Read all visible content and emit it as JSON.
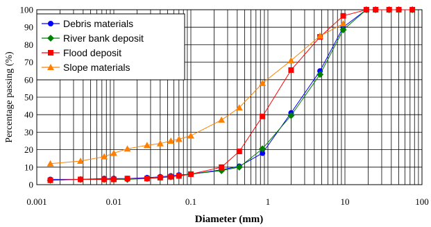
{
  "chart_data": {
    "type": "line",
    "xscale": "log",
    "xlim": [
      0.001,
      100
    ],
    "ylim": [
      0,
      100
    ],
    "xlabel": "Diameter (mm)",
    "ylabel": "Percentage passing (%)",
    "xticks": [
      "0.001",
      "0.01",
      "0.1",
      "1",
      "10",
      "100"
    ],
    "yticks": [
      "0",
      "10",
      "20",
      "30",
      "40",
      "50",
      "60",
      "70",
      "80",
      "90",
      "100"
    ],
    "grid": true,
    "legend_position": "top-left",
    "series": [
      {
        "name": "Debris materials",
        "color": "#0000ff",
        "marker": "circle",
        "x": [
          0.0015,
          0.0037,
          0.0075,
          0.01,
          0.015,
          0.027,
          0.04,
          0.055,
          0.07,
          0.1,
          0.25,
          0.425,
          0.85,
          2,
          4.75,
          9.5,
          19,
          25,
          37.5,
          50,
          75
        ],
        "y": [
          3,
          3,
          3.5,
          3.5,
          3.5,
          4,
          4.5,
          5,
          5.5,
          6,
          8.5,
          10.5,
          18,
          41,
          65,
          90,
          100,
          100,
          100,
          100,
          100
        ]
      },
      {
        "name": "River bank deposit",
        "color": "#008000",
        "marker": "diamond",
        "x": [
          0.0015,
          0.0037,
          0.0075,
          0.01,
          0.015,
          0.027,
          0.04,
          0.055,
          0.07,
          0.1,
          0.25,
          0.425,
          0.85,
          2,
          4.75,
          9.5,
          19,
          25,
          37.5,
          50,
          75
        ],
        "y": [
          2.5,
          3,
          3,
          3,
          3,
          3.5,
          4,
          4.5,
          5,
          6,
          8,
          10,
          20.5,
          39.5,
          63,
          88.5,
          100,
          100,
          100,
          100,
          100
        ]
      },
      {
        "name": "Flood deposit",
        "color": "#ff0000",
        "marker": "square",
        "x": [
          0.0015,
          0.0037,
          0.0075,
          0.01,
          0.015,
          0.027,
          0.04,
          0.055,
          0.07,
          0.1,
          0.25,
          0.425,
          0.85,
          2,
          4.75,
          9.5,
          19,
          25,
          37.5,
          50,
          75
        ],
        "y": [
          2.5,
          3,
          3,
          3,
          3.5,
          3.5,
          4,
          4.5,
          5,
          6,
          10,
          19,
          39,
          65.5,
          84.5,
          96.5,
          100,
          100,
          100,
          100,
          100
        ]
      },
      {
        "name": "Slope materials",
        "color": "#ff8000",
        "marker": "triangle",
        "x": [
          0.0015,
          0.0037,
          0.0075,
          0.01,
          0.015,
          0.027,
          0.04,
          0.055,
          0.07,
          0.1,
          0.25,
          0.425,
          0.85,
          2,
          4.75,
          9.5
        ],
        "y": [
          12,
          13.5,
          16,
          18,
          20.5,
          22.5,
          23.5,
          25,
          26,
          28,
          37,
          44,
          58,
          71,
          85,
          92
        ]
      }
    ]
  }
}
